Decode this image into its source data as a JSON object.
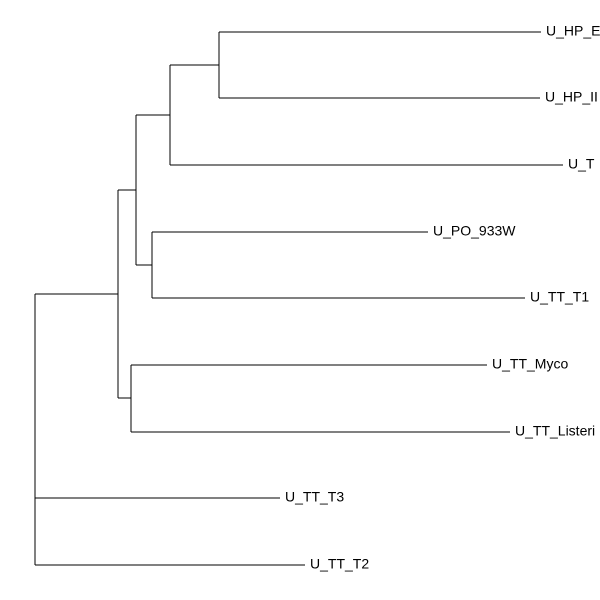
{
  "tree": {
    "leaves": [
      {
        "label": "U_HP_E"
      },
      {
        "label": "U_HP_II"
      },
      {
        "label": "U_T"
      },
      {
        "label": "U_PO_933W"
      },
      {
        "label": "U_TT_T1"
      },
      {
        "label": "U_TT_Myco"
      },
      {
        "label": "U_TT_Listeri"
      },
      {
        "label": "U_TT_T3"
      },
      {
        "label": "U_TT_T2"
      }
    ]
  }
}
